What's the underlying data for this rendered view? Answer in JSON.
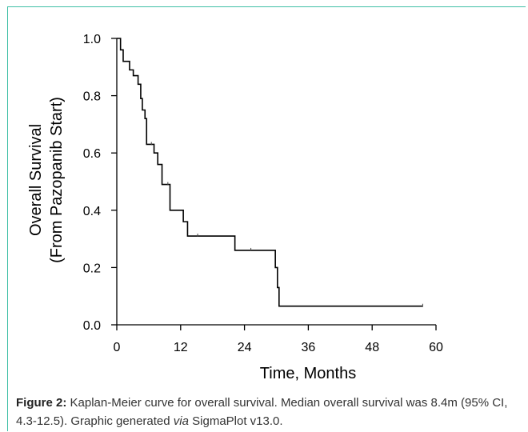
{
  "chart_data": {
    "type": "line",
    "step": true,
    "xlabel": "Time, Months",
    "ylabel_line1": "Overall Survival",
    "ylabel_line2": "(From Pazopanib Start)",
    "xlim": [
      0,
      60
    ],
    "ylim": [
      0,
      1.0
    ],
    "x_ticks": [
      0,
      12,
      24,
      36,
      48,
      60
    ],
    "y_ticks": [
      0.0,
      0.2,
      0.4,
      0.6,
      0.8,
      1.0
    ],
    "y_tick_labels": [
      "0.0",
      "0.2",
      "0.4",
      "0.6",
      "0.8",
      "1.0"
    ],
    "grid": false,
    "line_color": "#000000",
    "series": [
      {
        "x": [
          0,
          0.7,
          1.2,
          2.4,
          3.1,
          4.0,
          4.5,
          4.8,
          5.3,
          5.6,
          7.0,
          7.7,
          8.5,
          10.0,
          12.5,
          13.3,
          22.2,
          29.8,
          30.2,
          30.5,
          57.5
        ],
        "y": [
          1.0,
          0.96,
          0.92,
          0.89,
          0.87,
          0.84,
          0.79,
          0.75,
          0.72,
          0.63,
          0.6,
          0.56,
          0.49,
          0.4,
          0.36,
          0.31,
          0.26,
          0.2,
          0.13,
          0.065,
          0.065
        ]
      }
    ],
    "censored": [
      {
        "x": 6.5,
        "y": 0.63
      },
      {
        "x": 9.6,
        "y": 0.49
      },
      {
        "x": 15.2,
        "y": 0.31
      },
      {
        "x": 25.2,
        "y": 0.26
      },
      {
        "x": 57.5,
        "y": 0.065
      }
    ]
  },
  "caption": {
    "label": "Figure 2:",
    "text_before_via": " Kaplan-Meier curve for overall survival. Median overall survival was 8.4m (95% CI, 4.3-12.5). Graphic generated ",
    "via": "via",
    "text_after_via": " SigmaPlot v13.0."
  },
  "colors": {
    "frame_accent": "#3fbfa6",
    "caption_text": "#333333"
  }
}
